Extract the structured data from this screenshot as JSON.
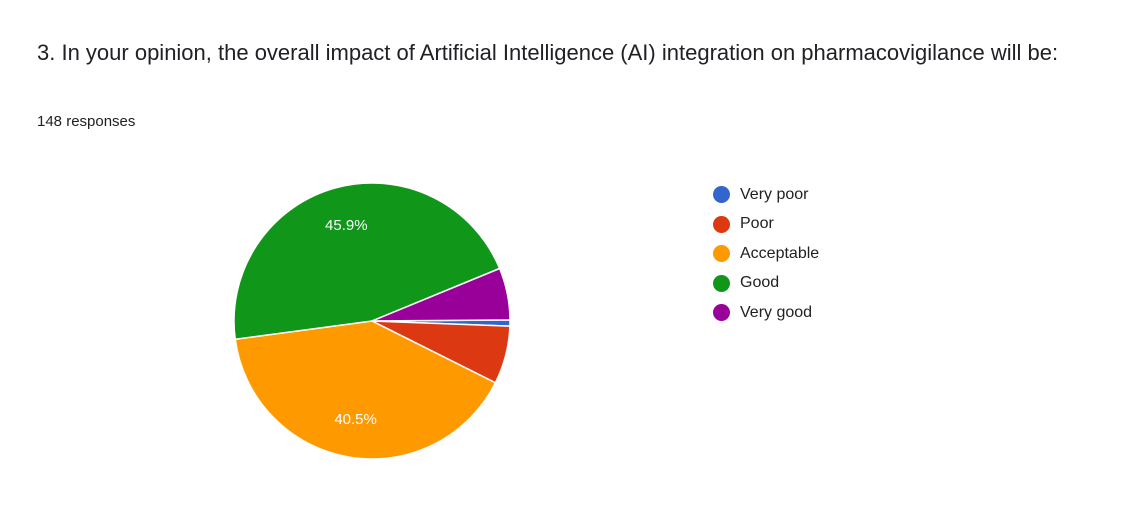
{
  "question": {
    "title": "3. In your opinion, the overall impact of  Artificial Intelligence (AI)  integration on pharmacovigilance will be:",
    "responses": "148 responses"
  },
  "chart_data": {
    "type": "pie",
    "categories": [
      "Very poor",
      "Poor",
      "Acceptable",
      "Good",
      "Very good"
    ],
    "values": [
      0.7,
      6.8,
      40.5,
      45.9,
      6.1
    ],
    "colors": [
      "#3366cc",
      "#dc3912",
      "#ff9900",
      "#109618",
      "#990099"
    ],
    "data_labels": [
      "",
      "",
      "40.5%",
      "45.9%",
      ""
    ],
    "legend": "right"
  }
}
